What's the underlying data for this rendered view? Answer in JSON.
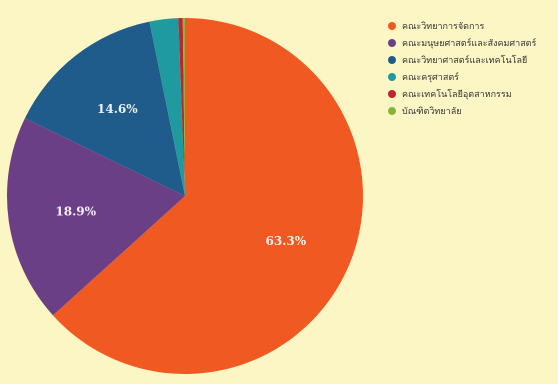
{
  "chart_data": {
    "type": "pie",
    "title": "",
    "slices": [
      {
        "label": "คณะวิทยาการจัดการ",
        "value": 63.3,
        "display": "63.3%",
        "color": "#f05a22"
      },
      {
        "label": "คณะมนุษยศาสตร์และสังคมศาสตร์",
        "value": 18.9,
        "display": "18.9%",
        "color": "#6b3f86"
      },
      {
        "label": "คณะวิทยาศาสตร์และเทคโนโลยี",
        "value": 14.6,
        "display": "14.6%",
        "color": "#1f5c8b"
      },
      {
        "label": "คณะครุศาสตร์",
        "value": 2.6,
        "display": "",
        "color": "#1f9aa0"
      },
      {
        "label": "คณะเทคโนโลยีอุตสาหกรรม",
        "value": 0.4,
        "display": "",
        "color": "#c0242e"
      },
      {
        "label": "บัณฑิตวิทยาลัย",
        "value": 0.2,
        "display": "",
        "color": "#86b73a"
      }
    ],
    "legend_position": "top-right"
  }
}
